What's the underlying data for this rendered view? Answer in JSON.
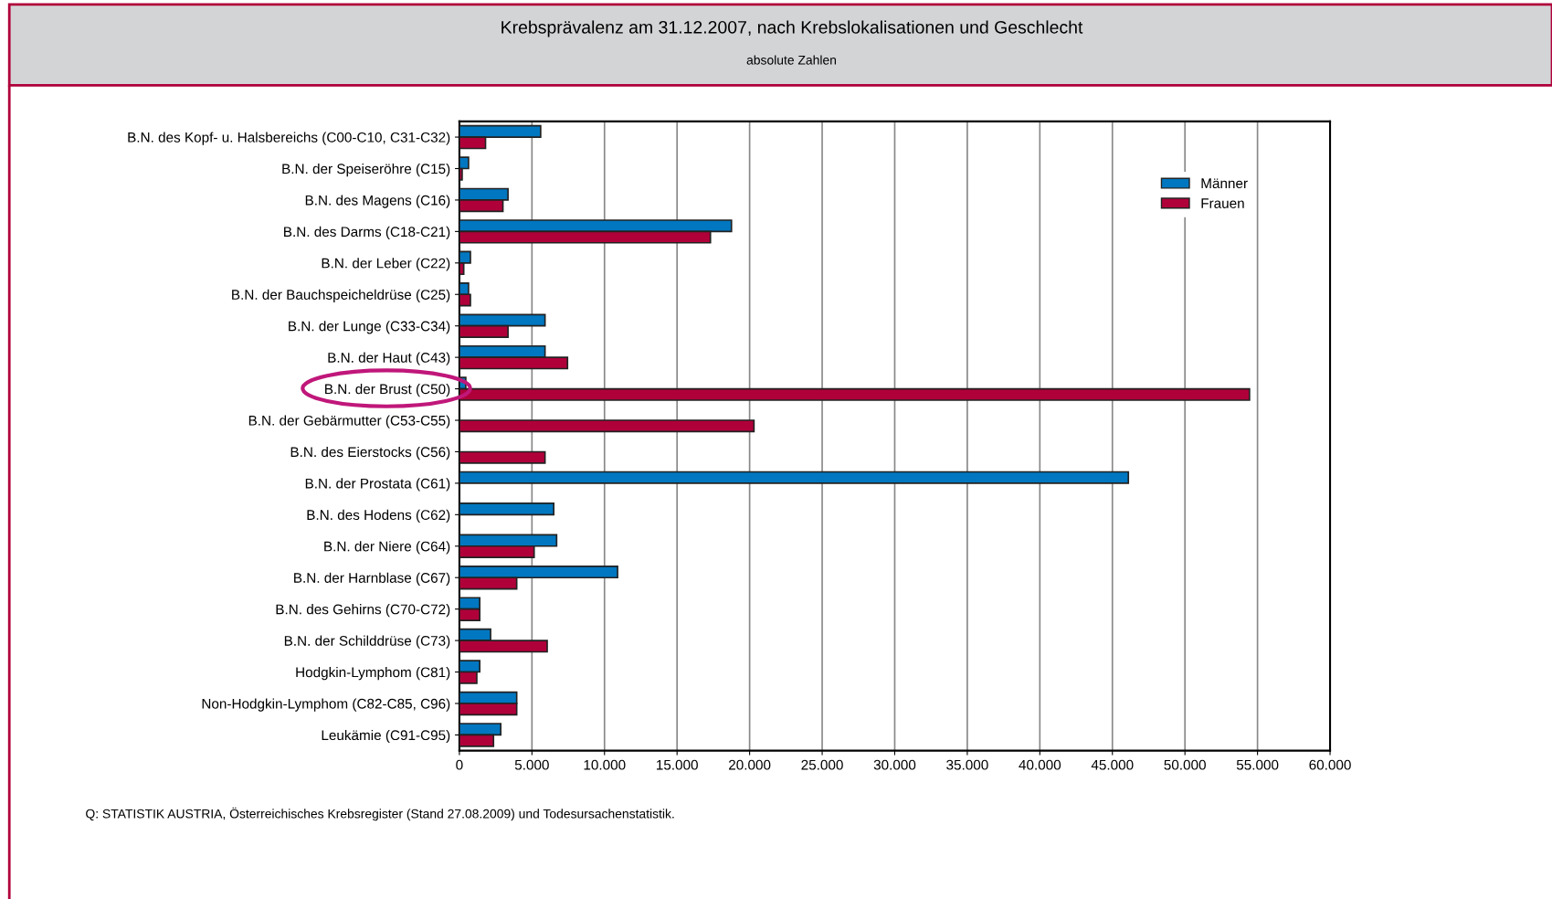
{
  "chart_data": {
    "type": "bar",
    "orientation": "horizontal",
    "title": "Krebsprävalenz am 31.12.2007, nach Krebslokalisationen und Geschlecht",
    "subtitle": "absolute Zahlen",
    "categories": [
      "B.N. des Kopf- u. Halsbereichs (C00-C10, C31-C32)",
      "B.N. der Speiseröhre (C15)",
      "B.N. des Magens (C16)",
      "B.N. des Darms (C18-C21)",
      "B.N. der Leber (C22)",
      "B.N. der Bauchspeicheldrüse (C25)",
      "B.N. der Lunge (C33-C34)",
      "B.N. der Haut (C43)",
      "B.N. der Brust (C50)",
      "B.N. der Gebärmutter (C53-C55)",
      "B.N. des Eierstocks (C56)",
      "B.N. der Prostata (C61)",
      "B.N. des Hodens (C62)",
      "B.N. der Niere (C64)",
      "B.N. der Harnblase (C67)",
      "B.N. des Gehirns (C70-C72)",
      "B.N. der Schilddrüse (C73)",
      "Hodgkin-Lymphom (C81)",
      "Non-Hodgkin-Lymphom (C82-C85, C96)",
      "Leukämie (C91-C95)"
    ],
    "series": [
      {
        "name": "Männer",
        "color": "#0077c0",
        "values": [
          5600,
          630,
          3350,
          18750,
          760,
          630,
          5900,
          5900,
          440,
          null,
          null,
          46100,
          6500,
          6700,
          10900,
          1400,
          2150,
          1400,
          3950,
          2850
        ]
      },
      {
        "name": "Frauen",
        "color": "#b0003a",
        "values": [
          1800,
          190,
          3000,
          17300,
          300,
          760,
          3350,
          7450,
          54450,
          20300,
          5900,
          null,
          null,
          5150,
          3950,
          1400,
          6050,
          1200,
          3950,
          2350
        ]
      }
    ],
    "xlim": [
      0,
      60000
    ],
    "xticks": [
      {
        "value": 0,
        "label": "0"
      },
      {
        "value": 5000,
        "label": "5.000"
      },
      {
        "value": 10000,
        "label": "10.000"
      },
      {
        "value": 15000,
        "label": "15.000"
      },
      {
        "value": 20000,
        "label": "20.000"
      },
      {
        "value": 25000,
        "label": "25.000"
      },
      {
        "value": 30000,
        "label": "30.000"
      },
      {
        "value": 35000,
        "label": "35.000"
      },
      {
        "value": 40000,
        "label": "40.000"
      },
      {
        "value": 45000,
        "label": "45.000"
      },
      {
        "value": 50000,
        "label": "50.000"
      },
      {
        "value": 55000,
        "label": "55.000"
      },
      {
        "value": 60000,
        "label": "60.000"
      }
    ],
    "grid": "x",
    "legend": "top right",
    "annotations": [
      "Q: STATISTIK AUSTRIA, Österreichisches Krebsregister (Stand 27.08.2009) und Todesursachenstatistik."
    ]
  }
}
